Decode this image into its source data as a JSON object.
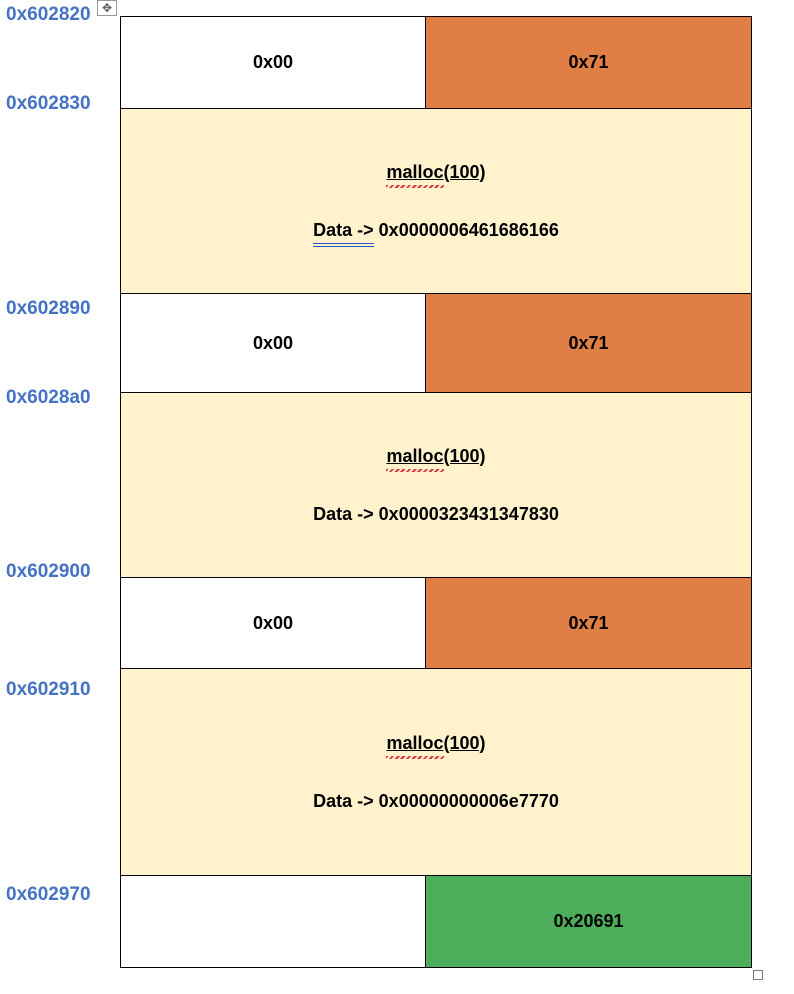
{
  "addresses": [
    "0x602820",
    "0x602830",
    "0x602890",
    "0x6028a0",
    "0x602900",
    "0x602910",
    "0x602970"
  ],
  "chunks": [
    {
      "header": {
        "prev_size": "0x00",
        "size": "0x71"
      },
      "body": {
        "call": "malloc",
        "arg": "(100)",
        "data_label": "Data ->",
        "data_value": "0x0000006461686166"
      }
    },
    {
      "header": {
        "prev_size": "0x00",
        "size": "0x71"
      },
      "body": {
        "call": "malloc",
        "arg": "(100)",
        "data_label": "Data ->",
        "data_value": "0x0000323431347830"
      }
    },
    {
      "header": {
        "prev_size": "0x00",
        "size": "0x71"
      },
      "body": {
        "call": "malloc",
        "arg": "(100)",
        "data_label": "Data ->",
        "data_value": "0x00000000006e7770"
      }
    }
  ],
  "top_chunk": {
    "prev_size": "",
    "size": "0x20691"
  },
  "colors": {
    "address": "#4472c4",
    "size_cell": "#e07f45",
    "top_size_cell": "#4cae5b",
    "data_cell": "#fff2cc"
  },
  "handles": {
    "move": "move-cross-icon",
    "resize": "resize-square-icon"
  }
}
